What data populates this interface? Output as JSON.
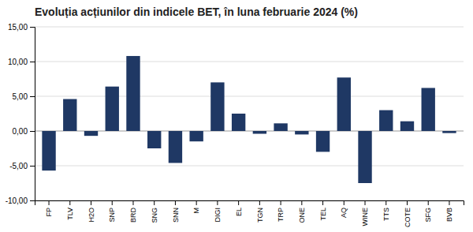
{
  "chart_data": {
    "type": "bar",
    "title": "Evoluția acțiunilor din indicele BET, în luna februarie 2024 (%)",
    "categories": [
      "FP",
      "TLV",
      "H2O",
      "SNP",
      "BRD",
      "SNG",
      "SNN",
      "M",
      "DIGI",
      "EL",
      "TGN",
      "TRP",
      "ONE",
      "TEL",
      "AQ",
      "WINE",
      "TTS",
      "COTE",
      "SFG",
      "BVB"
    ],
    "values": [
      -5.7,
      4.6,
      -0.7,
      6.4,
      10.8,
      -2.5,
      -4.6,
      -1.5,
      7.0,
      2.5,
      -0.4,
      1.1,
      -0.5,
      -3.0,
      7.7,
      -7.5,
      3.0,
      1.4,
      6.2,
      -0.3
    ],
    "color": "#1F3864",
    "ylim": [
      -10.0,
      15.0
    ],
    "yticks": [
      {
        "value": -10.0,
        "label": "-10,00"
      },
      {
        "value": -5.0,
        "label": "-5,00"
      },
      {
        "value": 0.0,
        "label": "0,00"
      },
      {
        "value": 5.0,
        "label": "5,00"
      },
      {
        "value": 10.0,
        "label": "10,00"
      },
      {
        "value": 15.0,
        "label": "15,00"
      }
    ],
    "grid": true
  }
}
